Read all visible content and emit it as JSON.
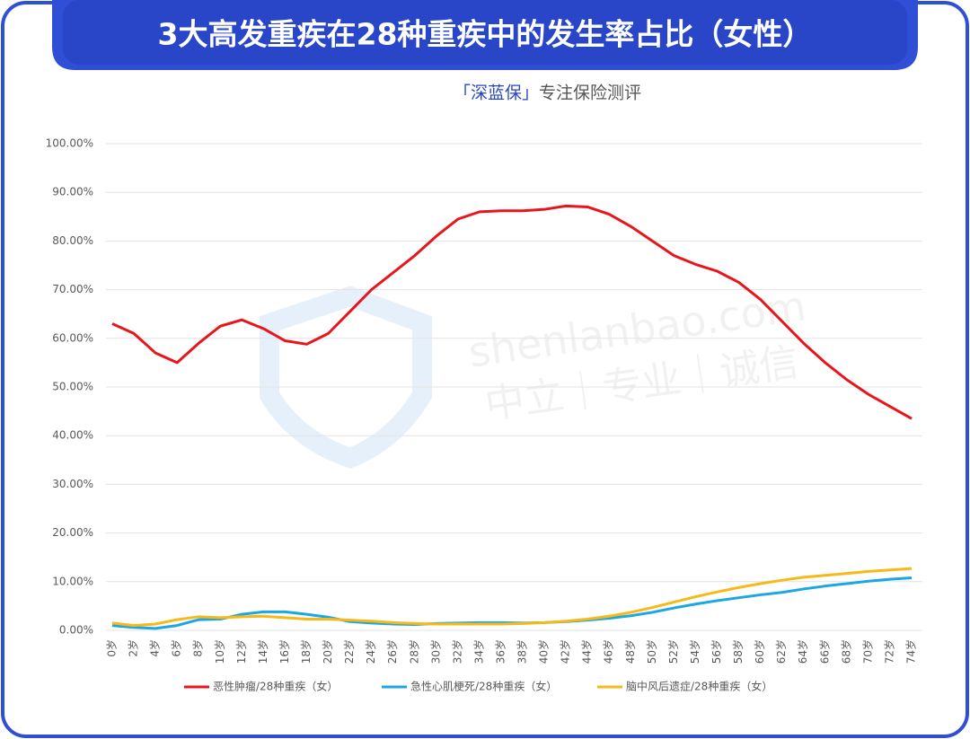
{
  "chart_data": {
    "type": "line",
    "title": "3大高发重疾在28种重疾中的发生率占比（女性）",
    "subtitle_brand": "「深蓝保」",
    "subtitle": "专注保险测评",
    "watermark": [
      "shenlanbao.com",
      "中立｜专业｜诚信"
    ],
    "categories": [
      "0岁",
      "2岁",
      "4岁",
      "6岁",
      "8岁",
      "10岁",
      "12岁",
      "14岁",
      "16岁",
      "18岁",
      "20岁",
      "22岁",
      "24岁",
      "26岁",
      "28岁",
      "30岁",
      "32岁",
      "34岁",
      "36岁",
      "38岁",
      "40岁",
      "42岁",
      "44岁",
      "46岁",
      "48岁",
      "50岁",
      "52岁",
      "54岁",
      "56岁",
      "58岁",
      "60岁",
      "62岁",
      "64岁",
      "66岁",
      "68岁",
      "70岁",
      "72岁",
      "74岁"
    ],
    "series": [
      {
        "name": "恶性肿瘤/28种重疾（女）",
        "color": "#e8161b",
        "values": [
          63.0,
          61.0,
          57.0,
          55.0,
          59.0,
          62.5,
          63.8,
          62.0,
          59.5,
          58.8,
          61.0,
          65.5,
          70.0,
          73.5,
          77.0,
          81.0,
          84.5,
          86.0,
          86.2,
          86.2,
          86.5,
          87.2,
          87.0,
          85.5,
          83.0,
          80.0,
          77.0,
          75.2,
          73.8,
          71.5,
          68.0,
          63.5,
          59.0,
          55.0,
          51.5,
          48.5,
          46.0,
          43.5
        ]
      },
      {
        "name": "急性心肌梗死/28种重疾（女）",
        "color": "#1aa7e6",
        "values": [
          1.0,
          0.6,
          0.4,
          1.0,
          2.2,
          2.3,
          3.3,
          3.8,
          3.8,
          3.3,
          2.7,
          1.8,
          1.5,
          1.3,
          1.2,
          1.4,
          1.5,
          1.6,
          1.6,
          1.5,
          1.6,
          1.8,
          2.1,
          2.5,
          3.0,
          3.7,
          4.6,
          5.4,
          6.1,
          6.7,
          7.3,
          7.8,
          8.5,
          9.1,
          9.6,
          10.1,
          10.5,
          10.8
        ]
      },
      {
        "name": "脑中风后遗症/28种重疾（女）",
        "color": "#f7b918",
        "values": [
          1.5,
          1.0,
          1.3,
          2.2,
          2.8,
          2.6,
          2.8,
          2.9,
          2.6,
          2.3,
          2.3,
          2.1,
          1.9,
          1.6,
          1.4,
          1.3,
          1.3,
          1.3,
          1.3,
          1.4,
          1.6,
          1.9,
          2.3,
          2.9,
          3.7,
          4.7,
          5.8,
          6.9,
          7.9,
          8.8,
          9.6,
          10.3,
          10.9,
          11.3,
          11.7,
          12.1,
          12.4,
          12.7
        ]
      }
    ],
    "ylim": [
      0,
      100
    ],
    "yticks": [
      {
        "value": 0,
        "label": "0.00%"
      },
      {
        "value": 10,
        "label": "10.00%"
      },
      {
        "value": 20,
        "label": "20.00%"
      },
      {
        "value": 30,
        "label": "30.00%"
      },
      {
        "value": 40,
        "label": "40.00%"
      },
      {
        "value": 50,
        "label": "50.00%"
      },
      {
        "value": 60,
        "label": "60.00%"
      },
      {
        "value": 70,
        "label": "70.00%"
      },
      {
        "value": 80,
        "label": "80.00%"
      },
      {
        "value": 90,
        "label": "90.00%"
      },
      {
        "value": 100,
        "label": "100.00%"
      }
    ],
    "grid": true,
    "legend": "bottom"
  }
}
